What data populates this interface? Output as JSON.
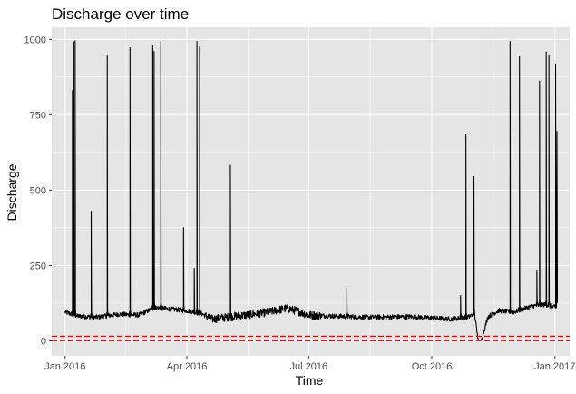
{
  "chart_data": {
    "type": "line",
    "title": "Discharge over time",
    "xlabel": "Time",
    "ylabel": "Discharge",
    "xlim": [
      "2015-12-22",
      "2017-01-12"
    ],
    "ylim": [
      -50,
      1040
    ],
    "x_ticks": [
      {
        "date": "2016-01-01",
        "label": "Jan 2016"
      },
      {
        "date": "2016-04-01",
        "label": "Apr 2016"
      },
      {
        "date": "2016-07-01",
        "label": "Jul 2016"
      },
      {
        "date": "2016-10-01",
        "label": "Oct 2016"
      },
      {
        "date": "2017-01-01",
        "label": "Jan 2017"
      }
    ],
    "y_ticks": [
      0,
      250,
      500,
      750,
      1000
    ],
    "grid": true,
    "panel_background": "#E5E5E5",
    "grid_color": "#FFFFFF",
    "series": [
      {
        "color": "#000000",
        "baseline_points": [
          [
            "2016-01-01",
            95
          ],
          [
            "2016-01-10",
            82
          ],
          [
            "2016-01-25",
            78
          ],
          [
            "2016-02-10",
            88
          ],
          [
            "2016-02-25",
            85
          ],
          [
            "2016-03-08",
            110
          ],
          [
            "2016-03-20",
            105
          ],
          [
            "2016-04-01",
            100
          ],
          [
            "2016-04-12",
            90
          ],
          [
            "2016-04-20",
            72
          ],
          [
            "2016-05-01",
            78
          ],
          [
            "2016-05-15",
            85
          ],
          [
            "2016-06-01",
            95
          ],
          [
            "2016-06-15",
            108
          ],
          [
            "2016-06-25",
            95
          ],
          [
            "2016-07-01",
            85
          ],
          [
            "2016-07-20",
            82
          ],
          [
            "2016-08-15",
            78
          ],
          [
            "2016-09-15",
            80
          ],
          [
            "2016-10-15",
            72
          ],
          [
            "2016-10-28",
            78
          ],
          [
            "2016-11-02",
            90
          ],
          [
            "2016-11-04",
            20
          ],
          [
            "2016-11-05",
            0
          ],
          [
            "2016-11-07",
            2
          ],
          [
            "2016-11-12",
            80
          ],
          [
            "2016-11-20",
            100
          ],
          [
            "2016-12-01",
            95
          ],
          [
            "2016-12-15",
            115
          ],
          [
            "2016-12-25",
            120
          ],
          [
            "2017-01-01",
            110
          ]
        ],
        "peaks": [
          {
            "date": "2016-01-06",
            "value": 830
          },
          {
            "date": "2016-01-07",
            "value": 992
          },
          {
            "date": "2016-01-08",
            "value": 995
          },
          {
            "date": "2016-01-20",
            "value": 430
          },
          {
            "date": "2016-02-01",
            "value": 945
          },
          {
            "date": "2016-02-18",
            "value": 972
          },
          {
            "date": "2016-03-06",
            "value": 978
          },
          {
            "date": "2016-03-07",
            "value": 960
          },
          {
            "date": "2016-03-12",
            "value": 992
          },
          {
            "date": "2016-03-29",
            "value": 375
          },
          {
            "date": "2016-04-06",
            "value": 240
          },
          {
            "date": "2016-04-08",
            "value": 993
          },
          {
            "date": "2016-04-10",
            "value": 975
          },
          {
            "date": "2016-05-03",
            "value": 582
          },
          {
            "date": "2016-07-29",
            "value": 175
          },
          {
            "date": "2016-10-22",
            "value": 150
          },
          {
            "date": "2016-10-26",
            "value": 683
          },
          {
            "date": "2016-11-01",
            "value": 545
          },
          {
            "date": "2016-11-28",
            "value": 993
          },
          {
            "date": "2016-12-05",
            "value": 942
          },
          {
            "date": "2016-12-18",
            "value": 235
          },
          {
            "date": "2016-12-20",
            "value": 862
          },
          {
            "date": "2016-12-25",
            "value": 958
          },
          {
            "date": "2016-12-27",
            "value": 945
          },
          {
            "date": "2017-01-01",
            "value": 915
          },
          {
            "date": "2017-01-02",
            "value": 695
          }
        ]
      }
    ],
    "reference_lines": [
      {
        "y": 0,
        "color": "#FF0000",
        "style": "dashed"
      },
      {
        "y": 15,
        "color": "#FF0000",
        "style": "dashed"
      }
    ]
  }
}
